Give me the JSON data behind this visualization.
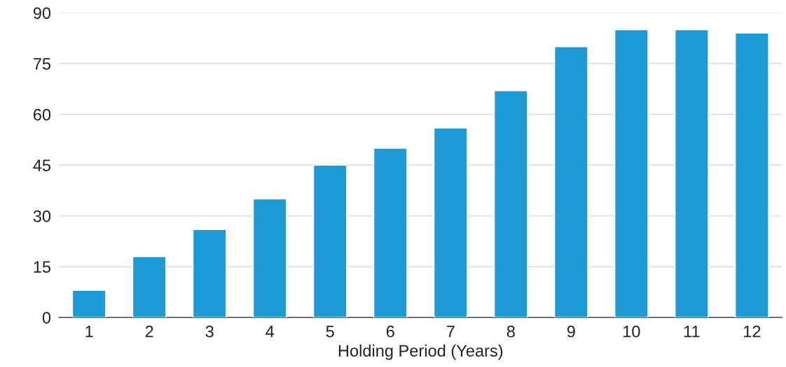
{
  "chart_data": {
    "type": "bar",
    "xlabel": "Holding Period (Years)",
    "categories": [
      "1",
      "2",
      "3",
      "4",
      "5",
      "6",
      "7",
      "8",
      "9",
      "10",
      "11",
      "12"
    ],
    "values": [
      8,
      18,
      26,
      35,
      45,
      50,
      56,
      67,
      80,
      85,
      85,
      84
    ],
    "color": "#1e9ad6",
    "ylim": [
      0,
      90
    ],
    "yticks": [
      0,
      15,
      30,
      45,
      60,
      75,
      90
    ],
    "grid": "y"
  }
}
